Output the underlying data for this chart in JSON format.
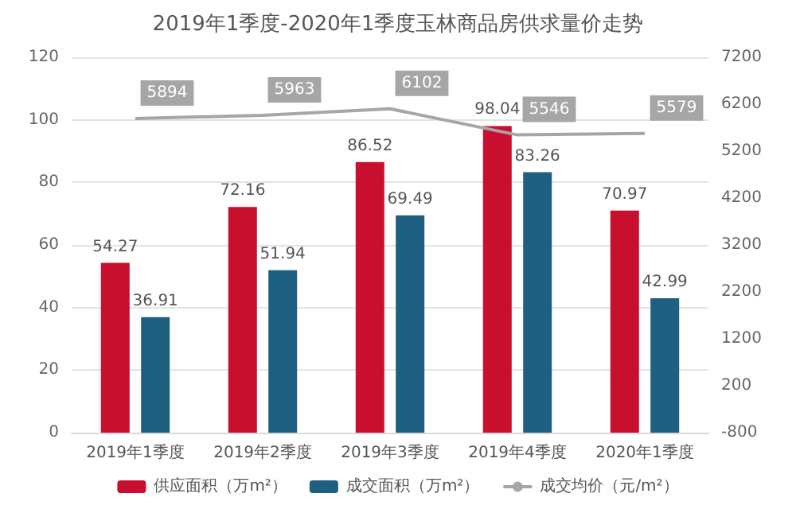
{
  "chart_data": {
    "type": "bar",
    "title": "2019年1季度-2020年1季度玉林商品房供求量价走势",
    "categories": [
      "2019年1季度",
      "2019年2季度",
      "2019年3季度",
      "2019年4季度",
      "2020年1季度"
    ],
    "series": [
      {
        "name": "供应面积（万m²）",
        "color": "#c8102e",
        "values": [
          54.27,
          72.16,
          86.52,
          98.04,
          70.97
        ]
      },
      {
        "name": "成交面积（万m²）",
        "color": "#1f5f7f",
        "values": [
          36.91,
          51.94,
          69.49,
          83.26,
          42.99
        ]
      },
      {
        "name": "成交均价（元/m²）",
        "type": "line",
        "axis": "y2",
        "color": "#a6a6a6",
        "values": [
          5894,
          5963,
          6102,
          5546,
          5579
        ]
      }
    ],
    "ylim": [
      0,
      120
    ],
    "yticks": [
      0,
      20,
      40,
      60,
      80,
      100,
      120
    ],
    "y2lim": [
      -800,
      7200
    ],
    "y2ticks": [
      -800,
      200,
      1200,
      2200,
      3200,
      4200,
      5200,
      6200,
      7200
    ],
    "grid": "y",
    "legend": "bottom",
    "data_labels": true,
    "marker": "none"
  }
}
